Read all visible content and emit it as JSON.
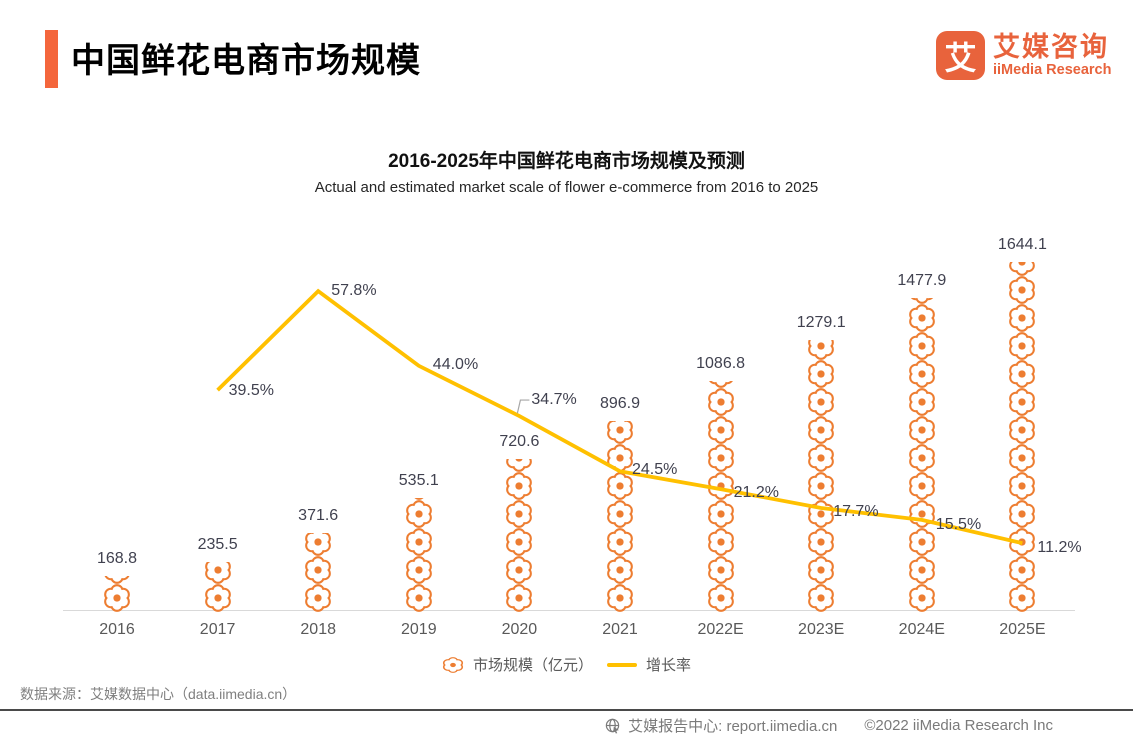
{
  "header": {
    "title": "中国鲜花电商市场规模",
    "logo": {
      "mark": "艾",
      "name_cn": "艾媒咨询",
      "name_en": "iiMedia Research"
    }
  },
  "colors": {
    "accent": "#F4663C",
    "flower": "#ED7D31",
    "growth_line": "#FFC000"
  },
  "chart_data": {
    "type": "bar",
    "variant": "pictogram flower bars with growth-rate line overlay",
    "title": "2016-2025年中国鲜花电商市场规模及预测",
    "subtitle": "Actual and estimated market scale of flower e-commerce from 2016 to 2025",
    "categories": [
      "2016",
      "2017",
      "2018",
      "2019",
      "2020",
      "2021",
      "2022E",
      "2023E",
      "2024E",
      "2025E"
    ],
    "series": [
      {
        "name": "市场规模（亿元）",
        "type": "pictogram-bar",
        "icon": "flower",
        "color": "#ED7D31",
        "values": [
          168.8,
          235.5,
          371.6,
          535.1,
          720.6,
          896.9,
          1086.8,
          1279.1,
          1477.9,
          1644.1
        ]
      },
      {
        "name": "增长率",
        "type": "line",
        "color": "#FFC000",
        "values": [
          null,
          39.5,
          57.8,
          44.0,
          34.7,
          24.5,
          21.2,
          17.7,
          15.5,
          11.2
        ]
      }
    ],
    "unit_bar": "亿元",
    "unit_line": "%",
    "grid": false,
    "legend_position": "bottom"
  },
  "legend": {
    "market": "市场规模（亿元）",
    "growth": "增长率"
  },
  "footer": {
    "source": "数据来源：艾媒数据中心（data.iimedia.cn）",
    "report_center": "艾媒报告中心: report.iimedia.cn",
    "copyright": "©2022 iiMedia Research Inc"
  }
}
